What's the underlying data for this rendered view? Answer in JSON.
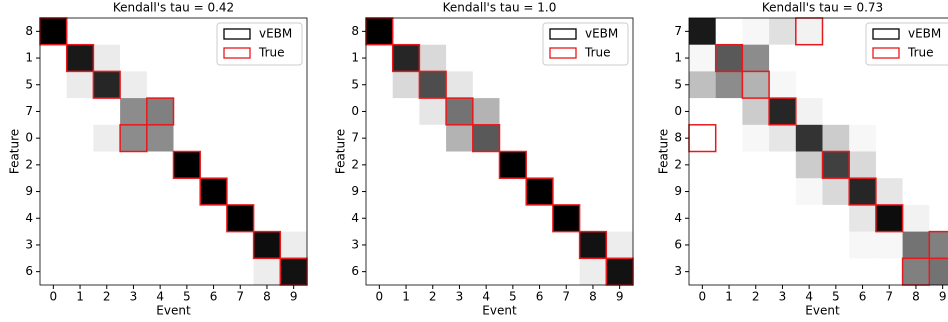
{
  "chart_data": [
    {
      "type": "heatmap",
      "title": "Kendall's tau = 0.42",
      "xlabel": "Event",
      "ylabel": "Feature",
      "categories": [
        "0",
        "1",
        "2",
        "3",
        "4",
        "5",
        "6",
        "7",
        "8",
        "9"
      ],
      "y_categories": [
        "8",
        "1",
        "5",
        "7",
        "0",
        "2",
        "9",
        "4",
        "3",
        "6"
      ],
      "values": [
        [
          1,
          0,
          0,
          0,
          0,
          0,
          0,
          0,
          0,
          0
        ],
        [
          0,
          0.9,
          0.08,
          0,
          0,
          0,
          0,
          0,
          0,
          0
        ],
        [
          0,
          0.08,
          0.85,
          0.07,
          0,
          0,
          0,
          0,
          0,
          0
        ],
        [
          0,
          0,
          0,
          0.45,
          0.5,
          0,
          0,
          0,
          0,
          0
        ],
        [
          0,
          0,
          0.07,
          0.45,
          0.45,
          0,
          0,
          0,
          0,
          0
        ],
        [
          0,
          0,
          0,
          0,
          0,
          1,
          0,
          0,
          0,
          0
        ],
        [
          0,
          0,
          0,
          0,
          0,
          0,
          1,
          0,
          0,
          0
        ],
        [
          0,
          0,
          0,
          0,
          0,
          0,
          0,
          1,
          0,
          0
        ],
        [
          0,
          0,
          0,
          0,
          0,
          0,
          0,
          0,
          0.95,
          0.07
        ],
        [
          0,
          0,
          0,
          0,
          0,
          0,
          0,
          0,
          0.07,
          0.93
        ]
      ],
      "true_events": [
        0,
        1,
        2,
        4,
        3,
        5,
        6,
        7,
        8,
        9
      ],
      "legend_labels": [
        "vEBM",
        "True"
      ],
      "true_color": "#e8191c",
      "legend": "upper right"
    },
    {
      "type": "heatmap",
      "title": "Kendall's tau = 1.0",
      "xlabel": "Event",
      "ylabel": "Feature",
      "categories": [
        "0",
        "1",
        "2",
        "3",
        "4",
        "5",
        "6",
        "7",
        "8",
        "9"
      ],
      "y_categories": [
        "8",
        "1",
        "5",
        "0",
        "7",
        "2",
        "9",
        "4",
        "3",
        "6"
      ],
      "values": [
        [
          1,
          0,
          0,
          0,
          0,
          0,
          0,
          0,
          0,
          0
        ],
        [
          0,
          0.85,
          0.15,
          0,
          0,
          0,
          0,
          0,
          0,
          0
        ],
        [
          0,
          0.15,
          0.7,
          0.1,
          0,
          0,
          0,
          0,
          0,
          0
        ],
        [
          0,
          0,
          0.1,
          0.55,
          0.3,
          0,
          0,
          0,
          0,
          0
        ],
        [
          0,
          0,
          0,
          0.3,
          0.65,
          0,
          0,
          0,
          0,
          0
        ],
        [
          0,
          0,
          0,
          0,
          0,
          1,
          0,
          0,
          0,
          0
        ],
        [
          0,
          0,
          0,
          0,
          0,
          0,
          1,
          0,
          0,
          0
        ],
        [
          0,
          0,
          0,
          0,
          0,
          0,
          0,
          1,
          0,
          0
        ],
        [
          0,
          0,
          0,
          0,
          0,
          0,
          0,
          0,
          0.93,
          0.07
        ],
        [
          0,
          0,
          0,
          0,
          0,
          0,
          0,
          0,
          0.07,
          0.93
        ]
      ],
      "true_events": [
        0,
        1,
        2,
        3,
        4,
        5,
        6,
        7,
        8,
        9
      ],
      "legend_labels": [
        "vEBM",
        "True"
      ],
      "true_color": "#e8191c",
      "legend": "upper right"
    },
    {
      "type": "heatmap",
      "title": "Kendall's tau = 0.73",
      "xlabel": "Event",
      "ylabel": "Feature",
      "categories": [
        "0",
        "1",
        "2",
        "3",
        "4",
        "5",
        "6",
        "7",
        "8",
        "9"
      ],
      "y_categories": [
        "7",
        "1",
        "5",
        "0",
        "8",
        "2",
        "9",
        "4",
        "6",
        "3"
      ],
      "values": [
        [
          0.9,
          0,
          0.03,
          0.12,
          0.05,
          0,
          0,
          0,
          0,
          0
        ],
        [
          0.03,
          0.65,
          0.45,
          0,
          0,
          0,
          0,
          0,
          0,
          0
        ],
        [
          0.25,
          0.45,
          0.3,
          0.03,
          0,
          0,
          0,
          0,
          0,
          0
        ],
        [
          0,
          0,
          0.2,
          0.85,
          0.05,
          0,
          0,
          0,
          0,
          0
        ],
        [
          0,
          0,
          0.03,
          0.1,
          0.8,
          0.2,
          0.03,
          0,
          0,
          0
        ],
        [
          0,
          0,
          0,
          0,
          0.2,
          0.75,
          0.15,
          0,
          0,
          0
        ],
        [
          0,
          0,
          0,
          0,
          0.03,
          0.15,
          0.85,
          0.1,
          0,
          0
        ],
        [
          0,
          0,
          0,
          0,
          0,
          0,
          0.1,
          0.95,
          0.05,
          0
        ],
        [
          0,
          0,
          0,
          0,
          0,
          0,
          0.03,
          0.03,
          0.55,
          0.5
        ],
        [
          0,
          0,
          0,
          0,
          0,
          0,
          0,
          0,
          0.5,
          0.55
        ]
      ],
      "true_events": [
        4,
        1,
        2,
        3,
        0,
        5,
        6,
        7,
        9,
        8
      ],
      "legend_labels": [
        "vEBM",
        "True"
      ],
      "true_color": "#e8191c",
      "legend": "upper right"
    }
  ]
}
